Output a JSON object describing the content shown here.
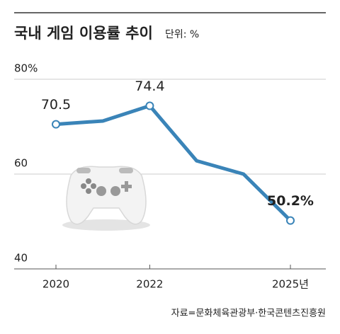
{
  "chart_data": {
    "type": "line",
    "title": "국내 게임 이용률 추이",
    "subtitle": "단위: %",
    "source": "자료=문화체육관광부·한국콘텐츠진흥원",
    "categories": [
      "2020",
      null,
      "2022",
      null,
      null,
      "2025년"
    ],
    "series": [
      {
        "color": "#3a84b8",
        "values": [
          70.5,
          71.2,
          74.4,
          62.8,
          60.0,
          50.2
        ],
        "value_labels": [
          "70.5",
          null,
          "74.4",
          null,
          null,
          "50.2%"
        ]
      }
    ],
    "ylim": [
      40,
      80
    ],
    "yticks": [
      40,
      60,
      {
        "value": 80,
        "label": "80%"
      }
    ],
    "grid": true
  }
}
